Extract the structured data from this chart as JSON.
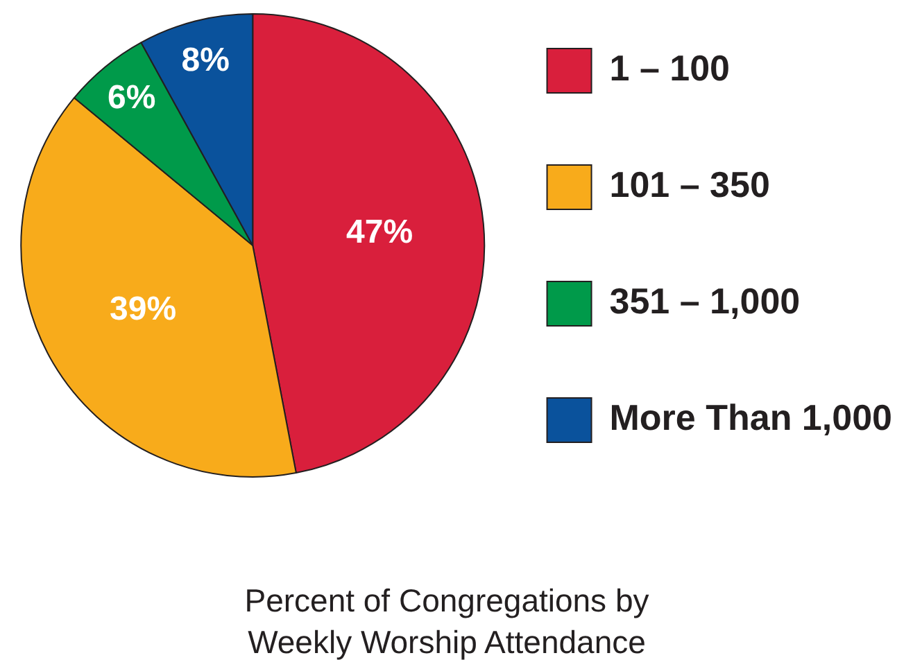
{
  "chart_data": {
    "type": "pie",
    "title": "Percent of Congregations by Weekly Worship Attendance",
    "categories": [
      "1 – 100",
      "101 – 350",
      "351 – 1,000",
      "More Than 1,000"
    ],
    "values": [
      47,
      39,
      6,
      8
    ],
    "colors": [
      "#d91f3c",
      "#f8ab1b",
      "#009a4a",
      "#0a529c"
    ],
    "value_labels": [
      "47%",
      "39%",
      "6%",
      "8%"
    ],
    "legend": "right"
  }
}
